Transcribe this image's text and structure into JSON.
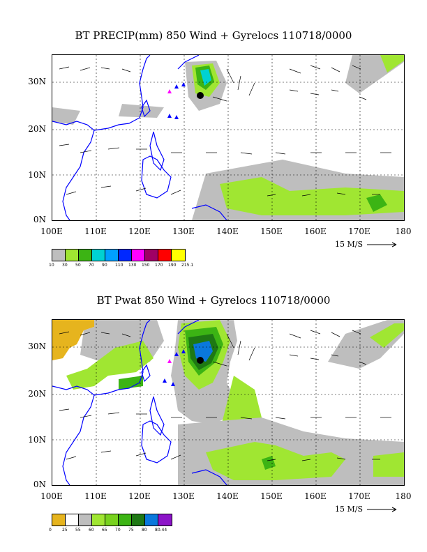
{
  "panel1": {
    "title": "BT PRECIP(mm) 850 Wind + Gyrelocs 110718/0000",
    "lat_labels": [
      "30N",
      "20N",
      "10N",
      "0N"
    ],
    "lon_labels": [
      "100E",
      "110E",
      "120E",
      "130E",
      "140E",
      "150E",
      "160E",
      "170E",
      "180"
    ],
    "scale_label": "15 M/S",
    "colorbar": {
      "colors": [
        "#bebebe",
        "#a0e632",
        "#3cb414",
        "#00d2d2",
        "#00a0ff",
        "#0028ff",
        "#ff00ff",
        "#a00064",
        "#ff0000",
        "#ffff00"
      ],
      "labels": [
        "10",
        "30",
        "50",
        "70",
        "90",
        "110",
        "130",
        "150",
        "170",
        "190",
        "215.1"
      ]
    }
  },
  "panel2": {
    "title": "BT Pwat 850 Wind + Gyrelocs 110718/0000",
    "lat_labels": [
      "30N",
      "20N",
      "10N",
      "0N"
    ],
    "lon_labels": [
      "100E",
      "110E",
      "120E",
      "130E",
      "140E",
      "150E",
      "160E",
      "170E",
      "180"
    ],
    "scale_label": "15 M/S",
    "colorbar": {
      "colors": [
        "#e6b41e",
        "#ffffff",
        "#bebebe",
        "#a0e632",
        "#78d21e",
        "#3cb414",
        "#1e7814",
        "#0a78dc",
        "#8c14c8"
      ],
      "labels": [
        "0",
        "25",
        "55",
        "60",
        "65",
        "70",
        "75",
        "80",
        "80.44"
      ]
    }
  },
  "colors": {
    "coast": "#0000ff",
    "axis": "#000000",
    "grid": "#000000"
  }
}
